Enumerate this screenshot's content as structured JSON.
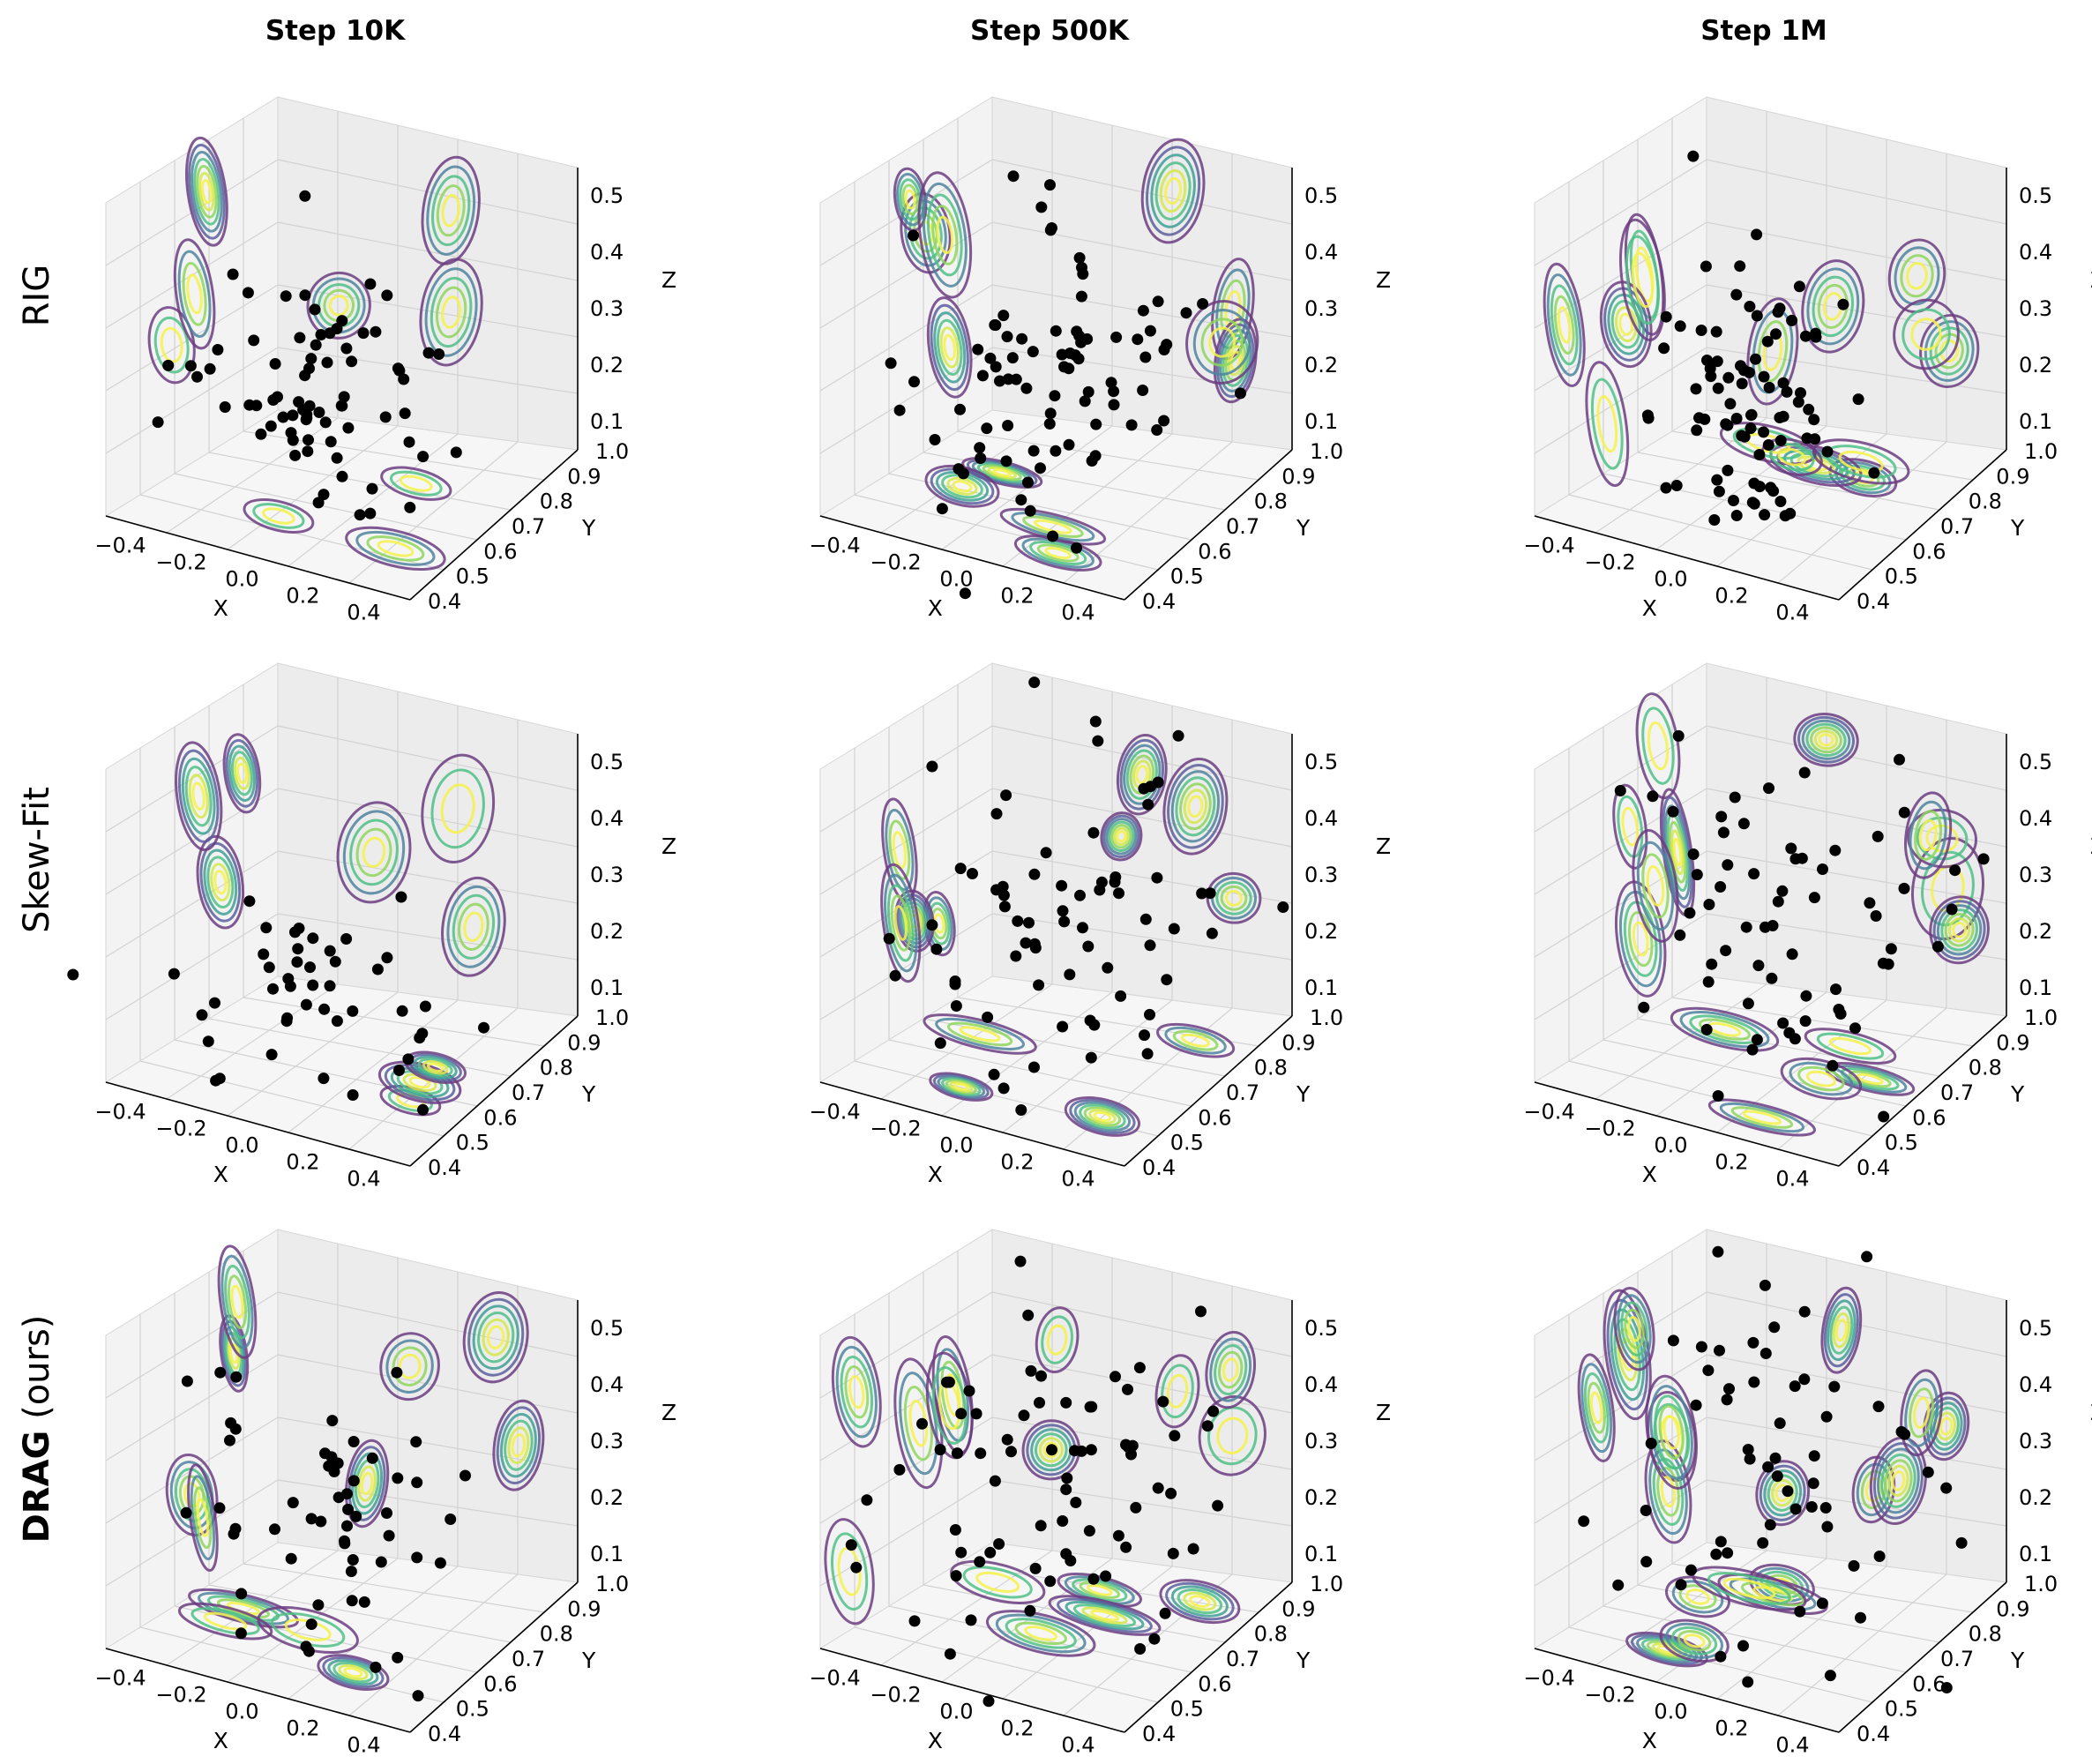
{
  "figure": {
    "column_titles": [
      "Step 10K",
      "Step 500K",
      "Step 1M"
    ],
    "row_labels": [
      {
        "bold": "",
        "rest": "RIG"
      },
      {
        "bold": "",
        "rest": "Skew-Fit"
      },
      {
        "bold": "DRAG",
        "rest": " (ours)"
      }
    ],
    "colors": {
      "points": "#000000",
      "contour_levels": [
        "#6b3c80",
        "#5c5f9c",
        "#4f849e",
        "#3f9f97",
        "#4fbf86",
        "#8ed65e",
        "#d4e84a",
        "#f4f24a"
      ]
    }
  },
  "chart_data": [
    {
      "type": "scatter3d",
      "title": "RIG — Step 10K",
      "xlabel": "X",
      "ylabel": "Y",
      "zlabel": "Z",
      "xlim": [
        -0.5,
        0.5
      ],
      "ylim": [
        0.4,
        1.0
      ],
      "zlim": [
        0.05,
        0.5
      ],
      "xticks": [
        "−0.4",
        "−0.2",
        "0.0",
        "0.2",
        "0.4"
      ],
      "yticks": [
        "0.4",
        "0.5",
        "0.6",
        "0.7",
        "0.8",
        "0.9",
        "1.0"
      ],
      "zticks": [
        "0.1",
        "0.2",
        "0.3",
        "0.4",
        "0.5"
      ],
      "num_points": 75,
      "spread": [
        0.2,
        0.09,
        0.09
      ],
      "center": [
        0.0,
        0.62,
        0.22
      ]
    },
    {
      "type": "scatter3d",
      "title": "RIG — Step 500K",
      "xlabel": "X",
      "ylabel": "Y",
      "zlabel": "Z",
      "xlim": [
        -0.5,
        0.5
      ],
      "ylim": [
        0.4,
        1.0
      ],
      "zlim": [
        0.05,
        0.5
      ],
      "xticks": [
        "−0.4",
        "−0.2",
        "0.0",
        "0.2",
        "0.4"
      ],
      "yticks": [
        "0.4",
        "0.5",
        "0.6",
        "0.7",
        "0.8",
        "0.9",
        "1.0"
      ],
      "zticks": [
        "0.1",
        "0.2",
        "0.3",
        "0.4",
        "0.5"
      ],
      "num_points": 85,
      "spread": [
        0.2,
        0.1,
        0.1
      ],
      "center": [
        0.02,
        0.6,
        0.24
      ]
    },
    {
      "type": "scatter3d",
      "title": "RIG — Step 1M",
      "xlabel": "X",
      "ylabel": "Y",
      "zlabel": "Z",
      "xlim": [
        -0.5,
        0.5
      ],
      "ylim": [
        0.4,
        1.0
      ],
      "zlim": [
        0.05,
        0.5
      ],
      "xticks": [
        "−0.4",
        "−0.2",
        "0.0",
        "0.2",
        "0.4"
      ],
      "yticks": [
        "0.4",
        "0.5",
        "0.6",
        "0.7",
        "0.8",
        "0.9",
        "1.0"
      ],
      "zticks": [
        "0.1",
        "0.2",
        "0.3",
        "0.4",
        "0.5"
      ],
      "num_points": 85,
      "spread": [
        0.12,
        0.07,
        0.12
      ],
      "center": [
        0.0,
        0.62,
        0.22
      ]
    },
    {
      "type": "scatter3d",
      "title": "Skew-Fit — Step 10K",
      "xlabel": "X",
      "ylabel": "Y",
      "zlabel": "Z",
      "xlim": [
        -0.5,
        0.5
      ],
      "ylim": [
        0.4,
        1.0
      ],
      "zlim": [
        0.05,
        0.5
      ],
      "xticks": [
        "−0.4",
        "−0.2",
        "0.0",
        "0.2",
        "0.4"
      ],
      "yticks": [
        "0.4",
        "0.5",
        "0.6",
        "0.7",
        "0.8",
        "0.9",
        "1.0"
      ],
      "zticks": [
        "0.1",
        "0.2",
        "0.3",
        "0.4",
        "0.5"
      ],
      "num_points": 45,
      "spread": [
        0.2,
        0.07,
        0.07
      ],
      "center": [
        0.05,
        0.62,
        0.16
      ]
    },
    {
      "type": "scatter3d",
      "title": "Skew-Fit — Step 500K",
      "xlabel": "X",
      "ylabel": "Y",
      "zlabel": "Z",
      "xlim": [
        -0.5,
        0.5
      ],
      "ylim": [
        0.4,
        1.0
      ],
      "zlim": [
        0.05,
        0.5
      ],
      "xticks": [
        "−0.4",
        "−0.2",
        "0.0",
        "0.2",
        "0.4"
      ],
      "yticks": [
        "0.4",
        "0.5",
        "0.6",
        "0.7",
        "0.8",
        "0.9",
        "1.0"
      ],
      "zticks": [
        "0.1",
        "0.2",
        "0.3",
        "0.4",
        "0.5"
      ],
      "num_points": 70,
      "spread": [
        0.25,
        0.13,
        0.12
      ],
      "center": [
        0.02,
        0.66,
        0.25
      ]
    },
    {
      "type": "scatter3d",
      "title": "Skew-Fit — Step 1M",
      "xlabel": "X",
      "ylabel": "Y",
      "zlabel": "Z",
      "xlim": [
        -0.5,
        0.5
      ],
      "ylim": [
        0.4,
        1.0
      ],
      "zlim": [
        0.05,
        0.5
      ],
      "xticks": [
        "−0.4",
        "−0.2",
        "0.0",
        "0.2",
        "0.4"
      ],
      "yticks": [
        "0.4",
        "0.5",
        "0.6",
        "0.7",
        "0.8",
        "0.9",
        "1.0"
      ],
      "zticks": [
        "0.1",
        "0.2",
        "0.3",
        "0.4",
        "0.5"
      ],
      "num_points": 65,
      "spread": [
        0.27,
        0.14,
        0.12
      ],
      "center": [
        0.04,
        0.68,
        0.27
      ]
    },
    {
      "type": "scatter3d",
      "title": "DRAG (ours) — Step 10K",
      "xlabel": "X",
      "ylabel": "Y",
      "zlabel": "Z",
      "xlim": [
        -0.5,
        0.5
      ],
      "ylim": [
        0.4,
        1.0
      ],
      "zlim": [
        0.05,
        0.5
      ],
      "xticks": [
        "−0.4",
        "−0.2",
        "0.0",
        "0.2",
        "0.4"
      ],
      "yticks": [
        "0.4",
        "0.5",
        "0.6",
        "0.7",
        "0.8",
        "0.9",
        "1.0"
      ],
      "zticks": [
        "0.1",
        "0.2",
        "0.3",
        "0.4",
        "0.5"
      ],
      "num_points": 55,
      "spread": [
        0.24,
        0.12,
        0.11
      ],
      "center": [
        0.02,
        0.62,
        0.22
      ]
    },
    {
      "type": "scatter3d",
      "title": "DRAG (ours) — Step 500K",
      "xlabel": "X",
      "ylabel": "Y",
      "zlabel": "Z",
      "xlim": [
        -0.5,
        0.5
      ],
      "ylim": [
        0.4,
        1.0
      ],
      "zlim": [
        0.05,
        0.5
      ],
      "xticks": [
        "−0.4",
        "−0.2",
        "0.0",
        "0.2",
        "0.4"
      ],
      "yticks": [
        "0.4",
        "0.5",
        "0.6",
        "0.7",
        "0.8",
        "0.9",
        "1.0"
      ],
      "zticks": [
        "0.1",
        "0.2",
        "0.3",
        "0.4",
        "0.5"
      ],
      "num_points": 75,
      "spread": [
        0.26,
        0.15,
        0.12
      ],
      "center": [
        0.0,
        0.66,
        0.26
      ]
    },
    {
      "type": "scatter3d",
      "title": "DRAG (ours) — Step 1M",
      "xlabel": "X",
      "ylabel": "Y",
      "zlabel": "Z",
      "xlim": [
        -0.5,
        0.5
      ],
      "ylim": [
        0.4,
        1.0
      ],
      "zlim": [
        0.05,
        0.5
      ],
      "xticks": [
        "−0.4",
        "−0.2",
        "0.0",
        "0.2",
        "0.4"
      ],
      "yticks": [
        "0.4",
        "0.5",
        "0.6",
        "0.7",
        "0.8",
        "0.9",
        "1.0"
      ],
      "zticks": [
        "0.1",
        "0.2",
        "0.3",
        "0.4",
        "0.5"
      ],
      "num_points": 60,
      "spread": [
        0.27,
        0.15,
        0.13
      ],
      "center": [
        0.05,
        0.68,
        0.27
      ]
    }
  ]
}
